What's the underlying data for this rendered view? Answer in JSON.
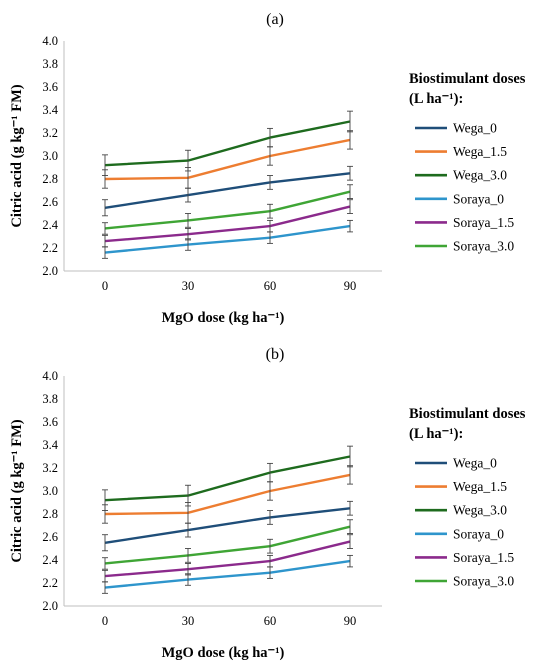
{
  "chart_data": [
    {
      "type": "line",
      "panel_label": "(a)",
      "xlabel": "MgO dose (kg ha⁻¹)",
      "ylabel": "Citric acid  (g kg⁻¹ FM)",
      "legend_title_line1": "Biostimulant doses",
      "legend_title_line2": "(L ha⁻¹):",
      "legend_position": "right",
      "grid": false,
      "ylim": [
        2.0,
        4.0
      ],
      "yticks": [
        "4.0",
        "3.8",
        "3.6",
        "3.4",
        "3.2",
        "3.0",
        "2.8",
        "2.6",
        "2.4",
        "2.2",
        "2.0"
      ],
      "categories": [
        "0",
        "30",
        "60",
        "90"
      ],
      "series": [
        {
          "name": "Wega_0",
          "color": "#1f4e79",
          "values": [
            2.55,
            2.66,
            2.77,
            2.85
          ],
          "errors": [
            0.07,
            0.06,
            0.06,
            0.06
          ]
        },
        {
          "name": "Wega_1.5",
          "color": "#ed7d31",
          "values": [
            2.8,
            2.81,
            3.0,
            3.14
          ],
          "errors": [
            0.08,
            0.09,
            0.08,
            0.08
          ]
        },
        {
          "name": "Wega_3.0",
          "color": "#1e6b1e",
          "values": [
            2.92,
            2.96,
            3.16,
            3.3
          ],
          "errors": [
            0.09,
            0.09,
            0.08,
            0.09
          ]
        },
        {
          "name": "Soraya_0",
          "color": "#2e95cc",
          "values": [
            2.16,
            2.23,
            2.29,
            2.39
          ],
          "errors": [
            0.05,
            0.05,
            0.05,
            0.05
          ]
        },
        {
          "name": "Soraya_1.5",
          "color": "#8b2a8c",
          "values": [
            2.26,
            2.32,
            2.39,
            2.56
          ],
          "errors": [
            0.05,
            0.05,
            0.05,
            0.06
          ]
        },
        {
          "name": "Soraya_3.0",
          "color": "#3fa535",
          "values": [
            2.37,
            2.44,
            2.52,
            2.69
          ],
          "errors": [
            0.05,
            0.06,
            0.06,
            0.06
          ]
        }
      ]
    },
    {
      "type": "line",
      "panel_label": "(b)",
      "xlabel": "MgO dose (kg ha⁻¹)",
      "ylabel": "Citric acid  (g kg⁻¹ FM)",
      "legend_title_line1": "Biostimulant doses",
      "legend_title_line2": "(L ha⁻¹):",
      "legend_position": "right",
      "grid": false,
      "ylim": [
        2.0,
        4.0
      ],
      "yticks": [
        "4.0",
        "3.8",
        "3.6",
        "3.4",
        "3.2",
        "3.0",
        "2.8",
        "2.6",
        "2.4",
        "2.2",
        "2.0"
      ],
      "categories": [
        "0",
        "30",
        "60",
        "90"
      ],
      "series": [
        {
          "name": "Wega_0",
          "color": "#1f4e79",
          "values": [
            2.55,
            2.66,
            2.77,
            2.85
          ],
          "errors": [
            0.07,
            0.06,
            0.06,
            0.06
          ]
        },
        {
          "name": "Wega_1.5",
          "color": "#ed7d31",
          "values": [
            2.8,
            2.81,
            3.0,
            3.14
          ],
          "errors": [
            0.08,
            0.09,
            0.08,
            0.08
          ]
        },
        {
          "name": "Wega_3.0",
          "color": "#1e6b1e",
          "values": [
            2.92,
            2.96,
            3.16,
            3.3
          ],
          "errors": [
            0.09,
            0.09,
            0.08,
            0.09
          ]
        },
        {
          "name": "Soraya_0",
          "color": "#2e95cc",
          "values": [
            2.16,
            2.23,
            2.29,
            2.39
          ],
          "errors": [
            0.05,
            0.05,
            0.05,
            0.05
          ]
        },
        {
          "name": "Soraya_1.5",
          "color": "#8b2a8c",
          "values": [
            2.26,
            2.32,
            2.39,
            2.56
          ],
          "errors": [
            0.05,
            0.05,
            0.05,
            0.06
          ]
        },
        {
          "name": "Soraya_3.0",
          "color": "#3fa535",
          "values": [
            2.37,
            2.44,
            2.52,
            2.69
          ],
          "errors": [
            0.05,
            0.06,
            0.06,
            0.06
          ]
        }
      ]
    }
  ]
}
